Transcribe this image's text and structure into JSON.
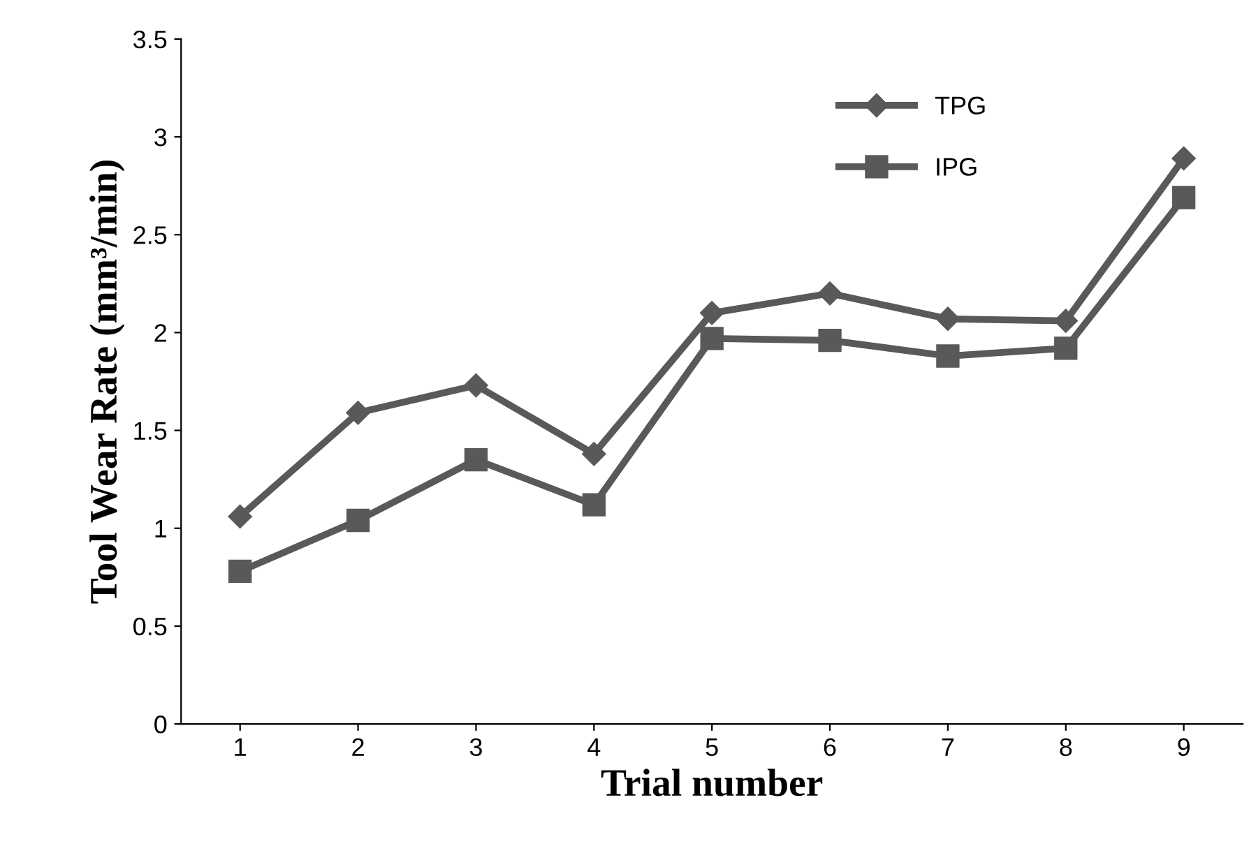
{
  "chart_data": {
    "type": "line",
    "xlabel": "Trial number",
    "ylabel": "Tool Wear Rate (mm³/min)",
    "categories": [
      "1",
      "2",
      "3",
      "4",
      "5",
      "6",
      "7",
      "8",
      "9"
    ],
    "series": [
      {
        "name": "TPG",
        "color": "#595959",
        "marker": "diamond",
        "values": [
          1.06,
          1.59,
          1.73,
          1.38,
          2.1,
          2.2,
          2.07,
          2.06,
          2.89
        ]
      },
      {
        "name": "IPG",
        "color": "#595959",
        "marker": "square",
        "values": [
          0.78,
          1.04,
          1.35,
          1.12,
          1.97,
          1.96,
          1.88,
          1.92,
          2.69
        ]
      }
    ],
    "ylim": [
      0,
      3.5
    ],
    "yticks": [
      0,
      0.5,
      1,
      1.5,
      2,
      2.5,
      3,
      3.5
    ],
    "grid": false,
    "legend": "top right",
    "line_style": "solid"
  }
}
